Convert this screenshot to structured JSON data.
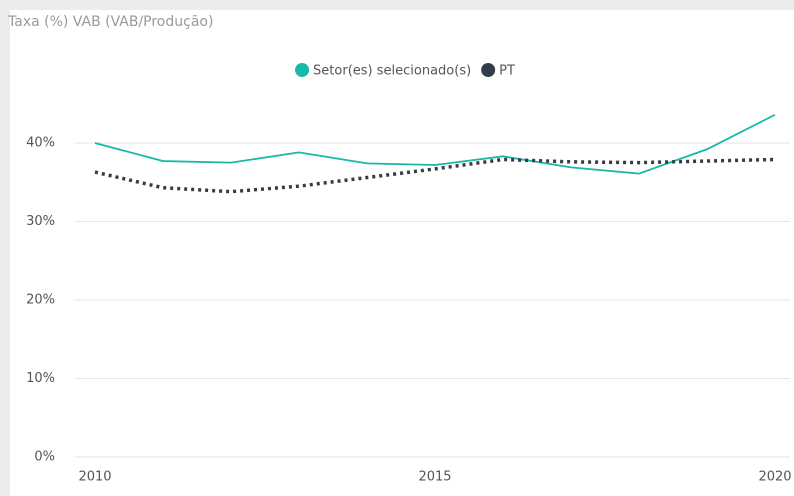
{
  "chart_data": {
    "type": "line",
    "title": "Taxa (%) VAB (VAB/Produção)",
    "x": [
      2010,
      2011,
      2012,
      2013,
      2014,
      2015,
      2016,
      2017,
      2018,
      2019,
      2020
    ],
    "xlim": [
      2010,
      2020
    ],
    "xticks": [
      2010,
      2015,
      2020
    ],
    "ylim": [
      0,
      45
    ],
    "yticks": [
      {
        "value": 0,
        "label": "0%"
      },
      {
        "value": 10,
        "label": "10%"
      },
      {
        "value": 20,
        "label": "20%"
      },
      {
        "value": 30,
        "label": "30%"
      },
      {
        "value": 40,
        "label": "40%"
      }
    ],
    "grid": true,
    "legend": "top",
    "series": [
      {
        "name": "Setor(es) selecionado(s)",
        "color": "#1ab8a8",
        "style": "solid",
        "values": [
          40.0,
          37.7,
          37.5,
          38.8,
          37.4,
          37.2,
          38.3,
          36.9,
          36.1,
          39.2,
          43.6
        ]
      },
      {
        "name": "PT",
        "color": "#333d47",
        "style": "dotted",
        "values": [
          36.3,
          34.3,
          33.8,
          34.5,
          35.6,
          36.7,
          37.9,
          37.6,
          37.5,
          37.7,
          37.9
        ]
      }
    ]
  }
}
